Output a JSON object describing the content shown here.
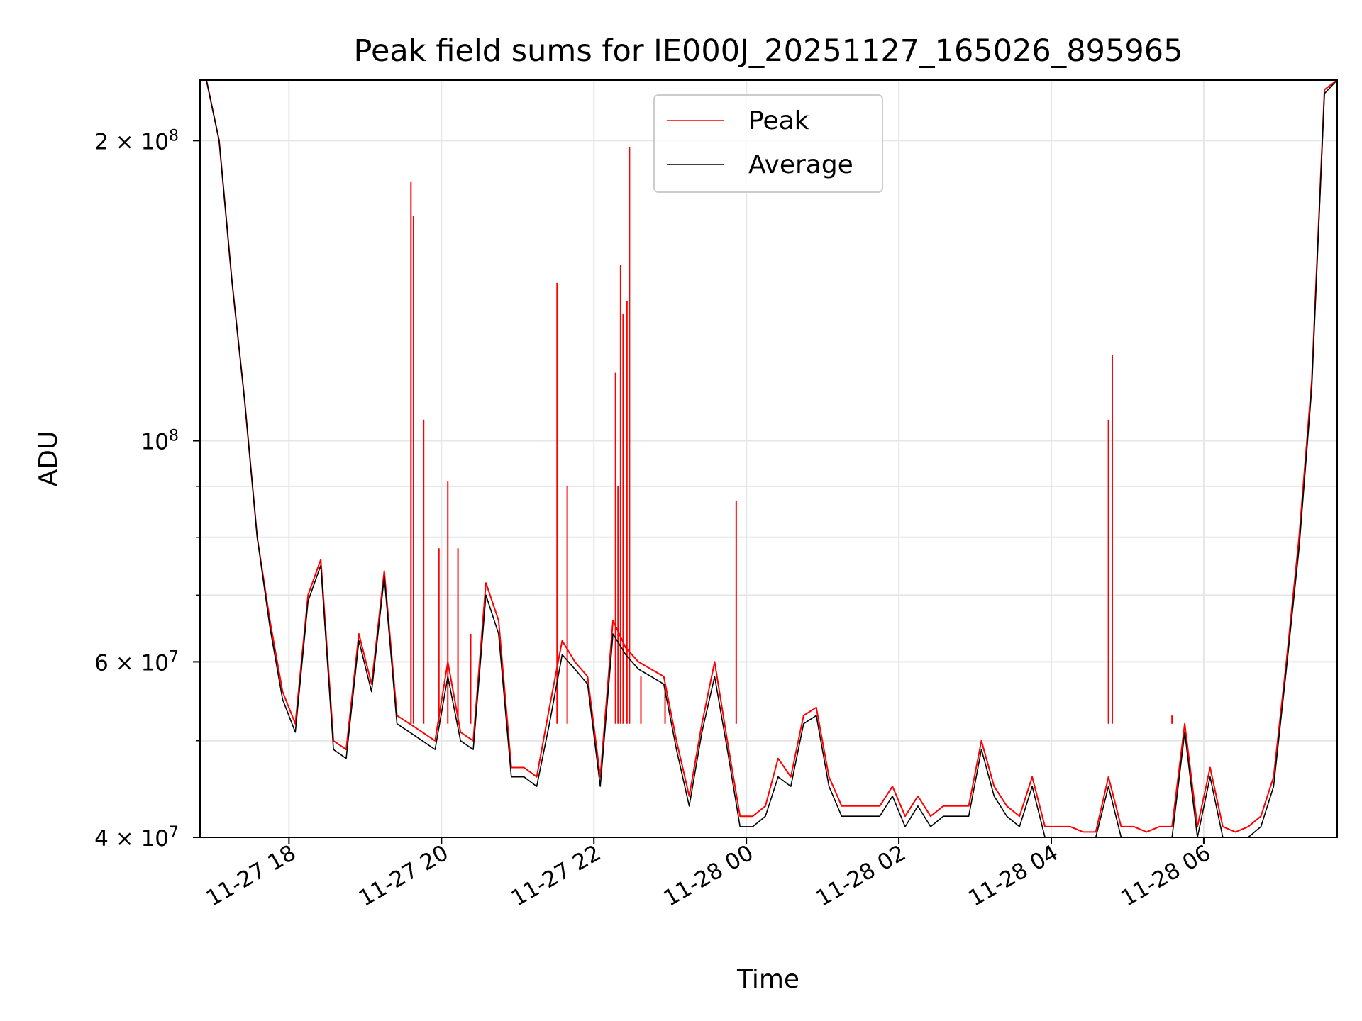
{
  "chart_data": {
    "type": "line",
    "title": "Peak field sums for IE000J_20251127_165026_895965",
    "xlabel": "Time",
    "ylabel": "ADU",
    "yscale": "log",
    "xlim": [
      "2025-11-27 16:50",
      "2025-11-28 07:45"
    ],
    "ylim": [
      40000000,
      230000000
    ],
    "grid": true,
    "legend_position": "top-center",
    "x_tick_labels": [
      "11-27 18",
      "11-27 20",
      "11-27 22",
      "11-28 00",
      "11-28 02",
      "11-28 04",
      "11-28 06"
    ],
    "y_tick_labels_major": [
      "2 × 10^8",
      "10^8",
      "6 × 10^7",
      "4 × 10^7"
    ],
    "series": [
      {
        "name": "Peak",
        "color": "#ff0000",
        "x": [
          "2025-11-27 16:55",
          "2025-11-27 17:05",
          "2025-11-27 17:15",
          "2025-11-27 17:25",
          "2025-11-27 17:35",
          "2025-11-27 17:45",
          "2025-11-27 17:55",
          "2025-11-27 18:05",
          "2025-11-27 18:15",
          "2025-11-27 18:25",
          "2025-11-27 18:35",
          "2025-11-27 18:45",
          "2025-11-27 18:55",
          "2025-11-27 19:05",
          "2025-11-27 19:15",
          "2025-11-27 19:25",
          "2025-11-27 19:35",
          "2025-11-27 19:45",
          "2025-11-27 19:55",
          "2025-11-27 20:05",
          "2025-11-27 20:15",
          "2025-11-27 20:25",
          "2025-11-27 20:35",
          "2025-11-27 20:45",
          "2025-11-27 20:55",
          "2025-11-27 21:05",
          "2025-11-27 21:15",
          "2025-11-27 21:25",
          "2025-11-27 21:35",
          "2025-11-27 21:45",
          "2025-11-27 21:55",
          "2025-11-27 22:05",
          "2025-11-27 22:15",
          "2025-11-27 22:25",
          "2025-11-27 22:35",
          "2025-11-27 22:45",
          "2025-11-27 22:55",
          "2025-11-27 23:05",
          "2025-11-27 23:15",
          "2025-11-27 23:25",
          "2025-11-27 23:35",
          "2025-11-27 23:45",
          "2025-11-27 23:55",
          "2025-11-28 00:05",
          "2025-11-28 00:15",
          "2025-11-28 00:25",
          "2025-11-28 00:35",
          "2025-11-28 00:45",
          "2025-11-28 00:55",
          "2025-11-28 01:05",
          "2025-11-28 01:15",
          "2025-11-28 01:25",
          "2025-11-28 01:35",
          "2025-11-28 01:45",
          "2025-11-28 01:55",
          "2025-11-28 02:05",
          "2025-11-28 02:15",
          "2025-11-28 02:25",
          "2025-11-28 02:35",
          "2025-11-28 02:45",
          "2025-11-28 02:55",
          "2025-11-28 03:05",
          "2025-11-28 03:15",
          "2025-11-28 03:25",
          "2025-11-28 03:35",
          "2025-11-28 03:45",
          "2025-11-28 03:55",
          "2025-11-28 04:05",
          "2025-11-28 04:15",
          "2025-11-28 04:25",
          "2025-11-28 04:35",
          "2025-11-28 04:45",
          "2025-11-28 04:55",
          "2025-11-28 05:05",
          "2025-11-28 05:15",
          "2025-11-28 05:25",
          "2025-11-28 05:35",
          "2025-11-28 05:45",
          "2025-11-28 05:55",
          "2025-11-28 06:05",
          "2025-11-28 06:15",
          "2025-11-28 06:25",
          "2025-11-28 06:35",
          "2025-11-28 06:45",
          "2025-11-28 06:55",
          "2025-11-28 07:05",
          "2025-11-28 07:15",
          "2025-11-28 07:25",
          "2025-11-28 07:35",
          "2025-11-28 07:45"
        ],
        "values": [
          230000000,
          200000000,
          145000000,
          110000000,
          80000000,
          66000000,
          56000000,
          52000000,
          70000000,
          76000000,
          50000000,
          49000000,
          64000000,
          57000000,
          74000000,
          53000000,
          52000000,
          51000000,
          50000000,
          60000000,
          51000000,
          50000000,
          72000000,
          66000000,
          47000000,
          47000000,
          46000000,
          54000000,
          63000000,
          60000000,
          58000000,
          46000000,
          66000000,
          62000000,
          60000000,
          59000000,
          58000000,
          50000000,
          44000000,
          52000000,
          60000000,
          50000000,
          42000000,
          42000000,
          43000000,
          48000000,
          46000000,
          53000000,
          54000000,
          46000000,
          43000000,
          43000000,
          43000000,
          43000000,
          45000000,
          42000000,
          44000000,
          42000000,
          43000000,
          43000000,
          43000000,
          50000000,
          45000000,
          43000000,
          42000000,
          46000000,
          41000000,
          41000000,
          41000000,
          40500000,
          40500000,
          46000000,
          41000000,
          41000000,
          40500000,
          41000000,
          41000000,
          52000000,
          41000000,
          47000000,
          41000000,
          40500000,
          41000000,
          42000000,
          46000000,
          60000000,
          80000000,
          115000000,
          225000000,
          230000000
        ]
      },
      {
        "name": "Average",
        "color": "#000000",
        "x": [
          "2025-11-27 16:55",
          "2025-11-27 17:05",
          "2025-11-27 17:15",
          "2025-11-27 17:25",
          "2025-11-27 17:35",
          "2025-11-27 17:45",
          "2025-11-27 17:55",
          "2025-11-27 18:05",
          "2025-11-27 18:15",
          "2025-11-27 18:25",
          "2025-11-27 18:35",
          "2025-11-27 18:45",
          "2025-11-27 18:55",
          "2025-11-27 19:05",
          "2025-11-27 19:15",
          "2025-11-27 19:25",
          "2025-11-27 19:35",
          "2025-11-27 19:45",
          "2025-11-27 19:55",
          "2025-11-27 20:05",
          "2025-11-27 20:15",
          "2025-11-27 20:25",
          "2025-11-27 20:35",
          "2025-11-27 20:45",
          "2025-11-27 20:55",
          "2025-11-27 21:05",
          "2025-11-27 21:15",
          "2025-11-27 21:25",
          "2025-11-27 21:35",
          "2025-11-27 21:45",
          "2025-11-27 21:55",
          "2025-11-27 22:05",
          "2025-11-27 22:15",
          "2025-11-27 22:25",
          "2025-11-27 22:35",
          "2025-11-27 22:45",
          "2025-11-27 22:55",
          "2025-11-27 23:05",
          "2025-11-27 23:15",
          "2025-11-27 23:25",
          "2025-11-27 23:35",
          "2025-11-27 23:45",
          "2025-11-27 23:55",
          "2025-11-28 00:05",
          "2025-11-28 00:15",
          "2025-11-28 00:25",
          "2025-11-28 00:35",
          "2025-11-28 00:45",
          "2025-11-28 00:55",
          "2025-11-28 01:05",
          "2025-11-28 01:15",
          "2025-11-28 01:25",
          "2025-11-28 01:35",
          "2025-11-28 01:45",
          "2025-11-28 01:55",
          "2025-11-28 02:05",
          "2025-11-28 02:15",
          "2025-11-28 02:25",
          "2025-11-28 02:35",
          "2025-11-28 02:45",
          "2025-11-28 02:55",
          "2025-11-28 03:05",
          "2025-11-28 03:15",
          "2025-11-28 03:25",
          "2025-11-28 03:35",
          "2025-11-28 03:45",
          "2025-11-28 03:55",
          "2025-11-28 04:05",
          "2025-11-28 04:15",
          "2025-11-28 04:25",
          "2025-11-28 04:35",
          "2025-11-28 04:45",
          "2025-11-28 04:55",
          "2025-11-28 05:05",
          "2025-11-28 05:15",
          "2025-11-28 05:25",
          "2025-11-28 05:35",
          "2025-11-28 05:45",
          "2025-11-28 05:55",
          "2025-11-28 06:05",
          "2025-11-28 06:15",
          "2025-11-28 06:25",
          "2025-11-28 06:35",
          "2025-11-28 06:45",
          "2025-11-28 06:55",
          "2025-11-28 07:05",
          "2025-11-28 07:15",
          "2025-11-28 07:25",
          "2025-11-28 07:35",
          "2025-11-28 07:45"
        ],
        "values": [
          230000000,
          200000000,
          145000000,
          110000000,
          80000000,
          65000000,
          55000000,
          51000000,
          69000000,
          75000000,
          49000000,
          48000000,
          63000000,
          56000000,
          73000000,
          52000000,
          51000000,
          50000000,
          49000000,
          58000000,
          50000000,
          49000000,
          70000000,
          64000000,
          46000000,
          46000000,
          45000000,
          52000000,
          61000000,
          59000000,
          57000000,
          45000000,
          64000000,
          61000000,
          59000000,
          58000000,
          57000000,
          49000000,
          43000000,
          51000000,
          58000000,
          49000000,
          41000000,
          41000000,
          42000000,
          46000000,
          45000000,
          52000000,
          53000000,
          45000000,
          42000000,
          42000000,
          42000000,
          42000000,
          44000000,
          41000000,
          43000000,
          41000000,
          42000000,
          42000000,
          42000000,
          49000000,
          44000000,
          42000000,
          41000000,
          45000000,
          40000000,
          40000000,
          40000000,
          40000000,
          40000000,
          45000000,
          40000000,
          40000000,
          40000000,
          40000000,
          40000000,
          51000000,
          40000000,
          46000000,
          40000000,
          40000000,
          40000000,
          41000000,
          45000000,
          59000000,
          78000000,
          113000000,
          223000000,
          230000000
        ]
      }
    ],
    "spikes": {
      "series": "Peak",
      "x": [
        "2025-11-27 19:36",
        "2025-11-27 19:38",
        "2025-11-27 19:46",
        "2025-11-27 19:58",
        "2025-11-27 20:05",
        "2025-11-27 20:13",
        "2025-11-27 20:23",
        "2025-11-27 21:31",
        "2025-11-27 21:39",
        "2025-11-27 22:17",
        "2025-11-27 22:19",
        "2025-11-27 22:21",
        "2025-11-27 22:23",
        "2025-11-27 22:26",
        "2025-11-27 22:28",
        "2025-11-27 22:37",
        "2025-11-27 22:56",
        "2025-11-27 23:52",
        "2025-11-28 04:45",
        "2025-11-28 04:48",
        "2025-11-28 05:35"
      ],
      "values": [
        182000000,
        168000000,
        105000000,
        78000000,
        91000000,
        78000000,
        64000000,
        144000000,
        90000000,
        117000000,
        90000000,
        150000000,
        134000000,
        138000000,
        197000000,
        58000000,
        57000000,
        87000000,
        105000000,
        122000000,
        53000000
      ]
    }
  }
}
